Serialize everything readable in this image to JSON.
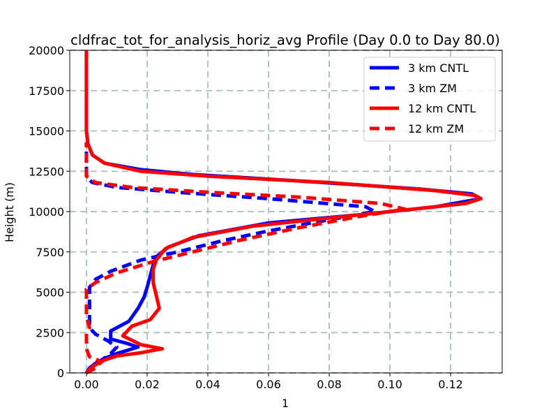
{
  "chart_data": {
    "type": "line",
    "title": "cldfrac_tot_for_analysis_horiz_avg Profile (Day 0.0 to Day 80.0)",
    "xlabel": "1",
    "ylabel": "Height (m)",
    "xlim": [
      -0.0055,
      0.137
    ],
    "ylim": [
      0,
      20000
    ],
    "xticks": [
      0.0,
      0.02,
      0.04,
      0.06,
      0.08,
      0.1,
      0.12
    ],
    "xtick_labels": [
      "0.00",
      "0.02",
      "0.04",
      "0.06",
      "0.08",
      "0.10",
      "0.12"
    ],
    "yticks": [
      0,
      2500,
      5000,
      7500,
      10000,
      12500,
      15000,
      17500,
      20000
    ],
    "ytick_labels": [
      "0",
      "2500",
      "5000",
      "7500",
      "10000",
      "12500",
      "15000",
      "17500",
      "20000"
    ],
    "grid": true,
    "legend_position": "top-right",
    "series": [
      {
        "name": "3 km CNTL",
        "color": "#0000ff",
        "dash": "solid",
        "points": [
          [
            0.0,
            0
          ],
          [
            0.001,
            300
          ],
          [
            0.003,
            600
          ],
          [
            0.006,
            900
          ],
          [
            0.01,
            1200
          ],
          [
            0.017,
            1600
          ],
          [
            0.013,
            1850
          ],
          [
            0.008,
            2100
          ],
          [
            0.008,
            2600
          ],
          [
            0.014,
            3200
          ],
          [
            0.017,
            4000
          ],
          [
            0.019,
            4700
          ],
          [
            0.02,
            5300
          ],
          [
            0.021,
            6000
          ],
          [
            0.022,
            6700
          ],
          [
            0.023,
            7200
          ],
          [
            0.027,
            7800
          ],
          [
            0.037,
            8500
          ],
          [
            0.06,
            9300
          ],
          [
            0.09,
            9800
          ],
          [
            0.115,
            10300
          ],
          [
            0.13,
            10800
          ],
          [
            0.127,
            11100
          ],
          [
            0.11,
            11400
          ],
          [
            0.07,
            11900
          ],
          [
            0.035,
            12300
          ],
          [
            0.018,
            12600
          ],
          [
            0.006,
            13000
          ],
          [
            0.002,
            13500
          ],
          [
            0.0005,
            14200
          ],
          [
            0.0,
            15000
          ],
          [
            0.0,
            17500
          ],
          [
            0.0,
            20000
          ]
        ]
      },
      {
        "name": "3 km ZM",
        "color": "#0000ff",
        "dash": "dashed",
        "points": [
          [
            0.0,
            0
          ],
          [
            0.002,
            400
          ],
          [
            0.005,
            800
          ],
          [
            0.008,
            1200
          ],
          [
            0.01,
            1600
          ],
          [
            0.007,
            2000
          ],
          [
            0.003,
            2400
          ],
          [
            0.001,
            2800
          ],
          [
            0.001,
            3500
          ],
          [
            0.001,
            4500
          ],
          [
            0.001,
            5300
          ],
          [
            0.003,
            5800
          ],
          [
            0.008,
            6300
          ],
          [
            0.018,
            7000
          ],
          [
            0.03,
            7500
          ],
          [
            0.045,
            8200
          ],
          [
            0.06,
            8800
          ],
          [
            0.08,
            9500
          ],
          [
            0.095,
            10000
          ],
          [
            0.092,
            10300
          ],
          [
            0.06,
            10800
          ],
          [
            0.03,
            11200
          ],
          [
            0.01,
            11500
          ],
          [
            0.002,
            11800
          ],
          [
            0.0,
            12100
          ],
          [
            0.0,
            13000
          ],
          [
            0.0,
            14000
          ],
          [
            0.0,
            14300
          ]
        ]
      },
      {
        "name": "12 km CNTL",
        "color": "#ff0000",
        "dash": "solid",
        "points": [
          [
            0.0,
            0
          ],
          [
            0.002,
            400
          ],
          [
            0.006,
            800
          ],
          [
            0.01,
            1050
          ],
          [
            0.018,
            1250
          ],
          [
            0.025,
            1500
          ],
          [
            0.018,
            1750
          ],
          [
            0.012,
            2300
          ],
          [
            0.015,
            2900
          ],
          [
            0.021,
            3300
          ],
          [
            0.024,
            4000
          ],
          [
            0.023,
            4800
          ],
          [
            0.022,
            5600
          ],
          [
            0.022,
            6400
          ],
          [
            0.023,
            7000
          ],
          [
            0.026,
            7700
          ],
          [
            0.035,
            8400
          ],
          [
            0.055,
            9100
          ],
          [
            0.08,
            9600
          ],
          [
            0.105,
            10100
          ],
          [
            0.125,
            10500
          ],
          [
            0.13,
            10800
          ],
          [
            0.128,
            11000
          ],
          [
            0.115,
            11300
          ],
          [
            0.08,
            11800
          ],
          [
            0.04,
            12200
          ],
          [
            0.018,
            12500
          ],
          [
            0.006,
            13000
          ],
          [
            0.002,
            13500
          ],
          [
            0.0005,
            14200
          ],
          [
            0.0,
            15000
          ],
          [
            0.0,
            17500
          ],
          [
            0.0,
            20000
          ]
        ]
      },
      {
        "name": "12 km ZM",
        "color": "#ff0000",
        "dash": "dashed",
        "points": [
          [
            0.0,
            0
          ],
          [
            0.003,
            300
          ],
          [
            0.005,
            700
          ],
          [
            0.001,
            1000
          ],
          [
            0.0,
            1500
          ],
          [
            0.0,
            2500
          ],
          [
            0.001,
            2800
          ],
          [
            0.0,
            3500
          ],
          [
            0.0,
            4500
          ],
          [
            0.0,
            5200
          ],
          [
            0.003,
            5600
          ],
          [
            0.01,
            6200
          ],
          [
            0.022,
            6900
          ],
          [
            0.035,
            7500
          ],
          [
            0.05,
            8200
          ],
          [
            0.07,
            9000
          ],
          [
            0.09,
            9700
          ],
          [
            0.105,
            10150
          ],
          [
            0.097,
            10500
          ],
          [
            0.07,
            10900
          ],
          [
            0.04,
            11200
          ],
          [
            0.015,
            11500
          ],
          [
            0.003,
            11800
          ],
          [
            0.0,
            12200
          ],
          [
            0.0,
            13000
          ],
          [
            0.0,
            14000
          ],
          [
            0.0,
            14300
          ]
        ]
      }
    ]
  }
}
